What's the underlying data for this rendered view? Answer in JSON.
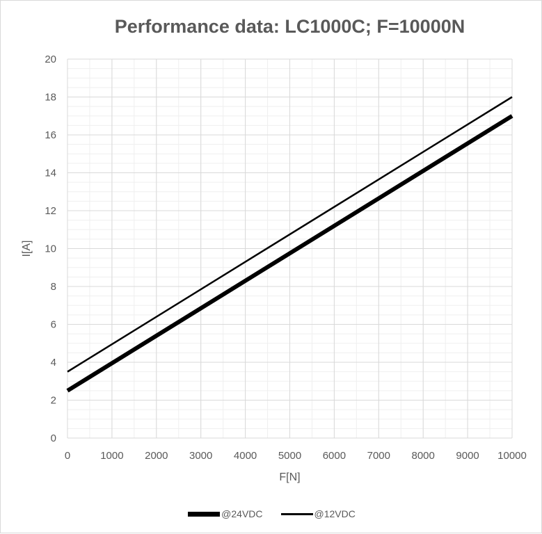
{
  "chart_data": {
    "type": "line",
    "title": "Performance data: LC1000C; F=10000N",
    "xlabel": "F[N]",
    "ylabel": "I[A]",
    "xlim": [
      0,
      10000
    ],
    "ylim": [
      0,
      20
    ],
    "x_ticks": [
      "0",
      "1000",
      "2000",
      "3000",
      "4000",
      "5000",
      "6000",
      "7000",
      "8000",
      "9000",
      "10000"
    ],
    "y_ticks": [
      "0",
      "2",
      "4",
      "6",
      "8",
      "10",
      "12",
      "14",
      "16",
      "18",
      "20"
    ],
    "grid": true,
    "minor_grid": true,
    "legend_position": "bottom",
    "series": [
      {
        "name": "@24VDC",
        "x": [
          0,
          10000
        ],
        "y": [
          2.5,
          17.0
        ],
        "color": "#000000",
        "style": "thick"
      },
      {
        "name": "@12VDC",
        "x": [
          0,
          10000
        ],
        "y": [
          3.5,
          18.0
        ],
        "color": "#000000",
        "style": "thin"
      }
    ]
  }
}
